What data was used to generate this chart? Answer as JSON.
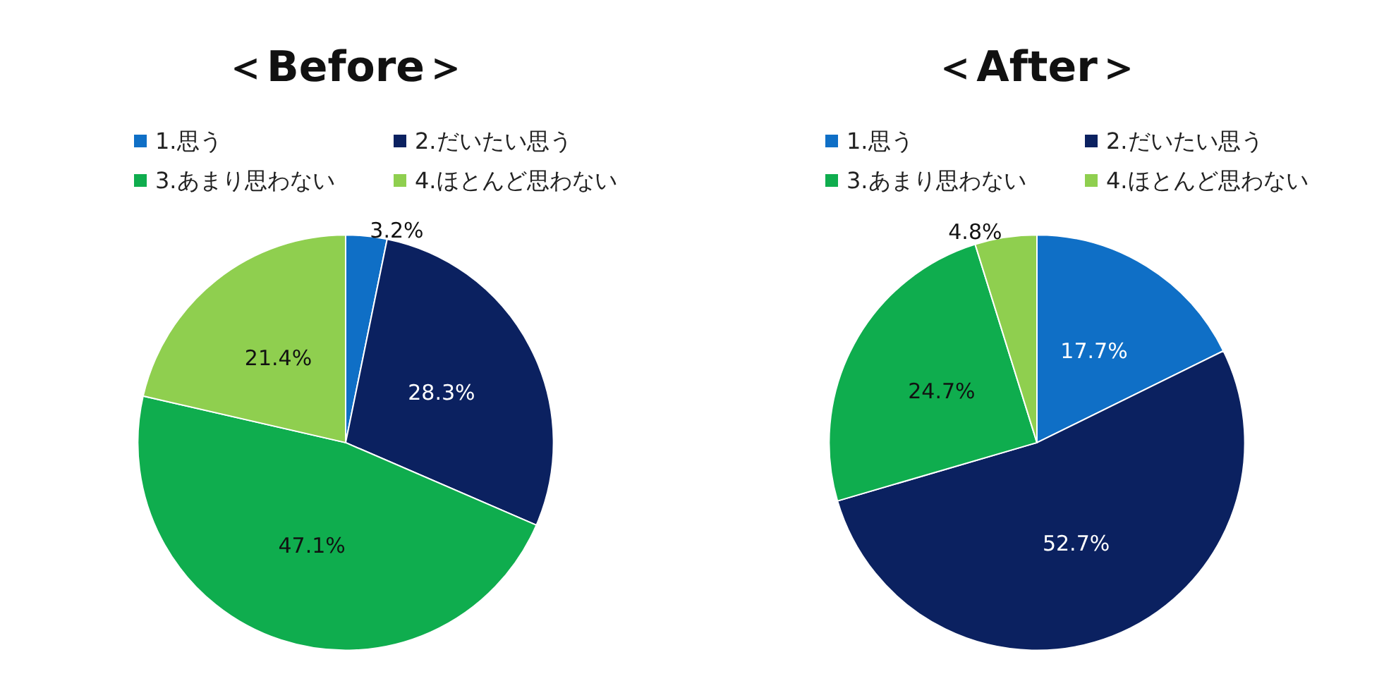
{
  "chart_data": [
    {
      "type": "pie",
      "title": "＜Before＞",
      "categories": [
        "1.思う",
        "2.だいたい思う",
        "3.あまり思わない",
        "4.ほとんど思わない"
      ],
      "values": [
        3.2,
        28.3,
        47.1,
        21.4
      ],
      "colors": [
        "#0f6fc6",
        "#0b2160",
        "#0fad4e",
        "#8fcf4f"
      ],
      "value_labels": [
        "3.2%",
        "28.3%",
        "47.1%",
        "21.4%"
      ],
      "legend": "top"
    },
    {
      "type": "pie",
      "title": "＜After＞",
      "categories": [
        "1.思う",
        "2.だいたい思う",
        "3.あまり思わない",
        "4.ほとんど思わない"
      ],
      "values": [
        17.7,
        52.7,
        24.7,
        4.8
      ],
      "colors": [
        "#0f6fc6",
        "#0b2160",
        "#0fad4e",
        "#8fcf4f"
      ],
      "value_labels": [
        "17.7%",
        "52.7%",
        "24.7%",
        "4.8%"
      ],
      "legend": "top"
    }
  ]
}
